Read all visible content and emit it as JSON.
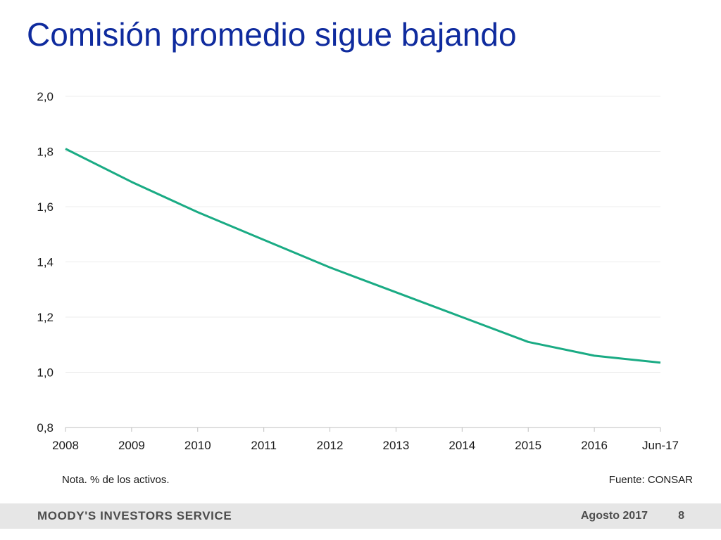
{
  "slide": {
    "title": "Comisión promedio sigue bajando",
    "note": "Nota. % de los activos.",
    "source": "Fuente: CONSAR"
  },
  "footer": {
    "brand": "MOODY'S INVESTORS SERVICE",
    "date": "Agosto 2017",
    "page": "8"
  },
  "colors": {
    "title": "#0f2b9e",
    "line": "#1aab84",
    "grid": "#ececec",
    "axis": "#bfbfbf",
    "footer_bg": "#e6e6e6"
  },
  "chart_data": {
    "type": "line",
    "categories": [
      "2008",
      "2009",
      "2010",
      "2011",
      "2012",
      "2013",
      "2014",
      "2015",
      "2016",
      "Jun-17"
    ],
    "series": [
      {
        "values": [
          1.81,
          1.69,
          1.58,
          1.48,
          1.38,
          1.29,
          1.2,
          1.11,
          1.06,
          1.035
        ]
      }
    ],
    "ylim": [
      0.8,
      2.0
    ],
    "yticks": [
      0.8,
      1.0,
      1.2,
      1.4,
      1.6,
      1.8,
      2.0
    ],
    "ytick_labels": [
      "0,8",
      "1,0",
      "1,2",
      "1,4",
      "1,6",
      "1,8",
      "2,0"
    ],
    "grid": true,
    "legend": "none",
    "xlabel": "",
    "ylabel": ""
  }
}
